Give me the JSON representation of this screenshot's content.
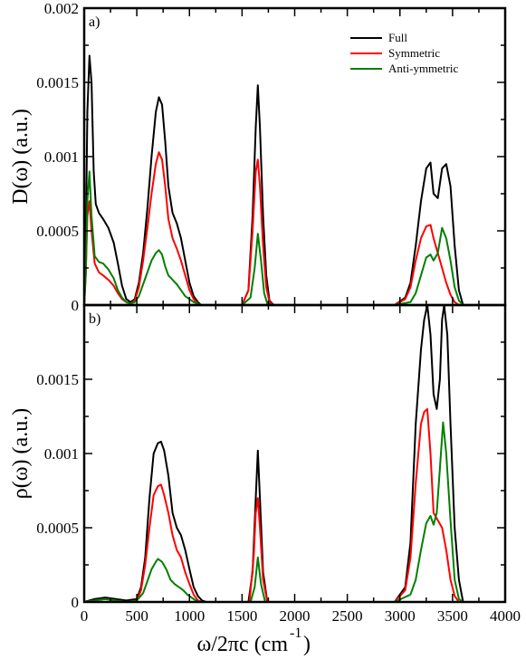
{
  "figure": {
    "xlabel_main": "ω/2πc (cm",
    "xlabel_sup": "-1",
    "xlabel_close": ")"
  },
  "colors": {
    "full": "#000000",
    "symmetric": "#ff0000",
    "antisymmetric": "#008000",
    "axes": "#000000"
  },
  "chart_data": [
    {
      "type": "line",
      "panel": "a)",
      "ylabel": "D(ω) (a.u.)",
      "xlim": [
        0,
        4000
      ],
      "ylim": [
        0,
        0.002
      ],
      "x_ticks": [
        "0",
        "500",
        "1000",
        "1500",
        "2000",
        "2500",
        "3000",
        "3500",
        "4000"
      ],
      "x_tick_values": [
        0,
        500,
        1000,
        1500,
        2000,
        2500,
        3000,
        3500,
        4000
      ],
      "y_ticks": [
        "0",
        "0.0005",
        "0.001",
        "0.0015",
        "0.002"
      ],
      "y_tick_values": [
        0,
        0.0005,
        0.001,
        0.0015,
        0.002
      ],
      "legend": {
        "placement": "top-right",
        "entries": [
          "Full",
          "Symmetric",
          "Anti-ymmetric"
        ]
      },
      "series": [
        {
          "name": "Full",
          "color": "#000000",
          "x": [
            0,
            15,
            30,
            50,
            70,
            90,
            110,
            140,
            180,
            230,
            280,
            320,
            360,
            400,
            440,
            480,
            520,
            560,
            600,
            640,
            680,
            710,
            740,
            770,
            800,
            840,
            880,
            920,
            960,
            1000,
            1040,
            1080,
            1110,
            1150,
            1200,
            1500,
            1560,
            1600,
            1630,
            1650,
            1670,
            1700,
            1730,
            1760,
            1800,
            2950,
            3050,
            3100,
            3150,
            3200,
            3250,
            3290,
            3320,
            3360,
            3400,
            3440,
            3480,
            3520,
            3560,
            3600,
            4000
          ],
          "y": [
            0,
            0.0004,
            0.0013,
            0.00168,
            0.0015,
            0.0009,
            0.00068,
            0.00062,
            0.00058,
            0.00052,
            0.00042,
            0.00028,
            0.00013,
            4e-05,
            2e-05,
            4e-05,
            0.00015,
            0.00035,
            0.00065,
            0.001,
            0.0013,
            0.0014,
            0.00135,
            0.0011,
            0.0008,
            0.00062,
            0.00055,
            0.00045,
            0.0003,
            0.00015,
            6e-05,
            2e-05,
            0,
            0,
            0,
            0,
            0.0001,
            0.0006,
            0.0012,
            0.00148,
            0.0012,
            0.0006,
            0.0002,
            3e-05,
            0,
            0,
            5e-05,
            0.00015,
            0.0004,
            0.0007,
            0.00092,
            0.00096,
            0.00075,
            0.00072,
            0.00092,
            0.00095,
            0.0008,
            0.0004,
            0.0001,
            0,
            0
          ]
        },
        {
          "name": "Symmetric",
          "color": "#ff0000",
          "x": [
            0,
            15,
            30,
            50,
            70,
            100,
            140,
            180,
            230,
            280,
            320,
            360,
            400,
            440,
            480,
            520,
            560,
            600,
            640,
            680,
            710,
            740,
            770,
            800,
            840,
            880,
            920,
            960,
            1000,
            1040,
            1080,
            1110,
            1150,
            1200,
            1500,
            1560,
            1600,
            1630,
            1650,
            1670,
            1700,
            1730,
            1760,
            1800,
            2950,
            3050,
            3100,
            3150,
            3200,
            3250,
            3290,
            3320,
            3360,
            3400,
            3440,
            3480,
            3520,
            3560,
            3600,
            4000
          ],
          "y": [
            0,
            0.0002,
            0.0006,
            0.0007,
            0.0005,
            0.00028,
            0.00022,
            0.0002,
            0.00017,
            0.00013,
            8e-05,
            4e-05,
            2e-05,
            1e-05,
            3e-05,
            0.00012,
            0.0003,
            0.00052,
            0.00075,
            0.00095,
            0.00103,
            0.00098,
            0.0008,
            0.00058,
            0.00045,
            0.00038,
            0.0003,
            0.0002,
            0.0001,
            4e-05,
            1e-05,
            0,
            0,
            0,
            0,
            0.0001,
            0.0005,
            0.0009,
            0.00098,
            0.0008,
            0.0004,
            0.00012,
            2e-05,
            0,
            0,
            4e-05,
            0.00012,
            0.0003,
            0.00045,
            0.00053,
            0.00054,
            0.00045,
            0.00035,
            0.00025,
            0.00015,
            7e-05,
            2e-05,
            0,
            0,
            0
          ]
        },
        {
          "name": "Anti-ymmetric",
          "color": "#008000",
          "x": [
            0,
            15,
            30,
            50,
            70,
            100,
            140,
            180,
            230,
            280,
            320,
            360,
            400,
            440,
            480,
            520,
            560,
            600,
            640,
            680,
            710,
            740,
            770,
            800,
            840,
            880,
            920,
            960,
            1000,
            1040,
            1080,
            1110,
            1150,
            1200,
            1500,
            1580,
            1620,
            1650,
            1680,
            1710,
            1740,
            1800,
            2950,
            3100,
            3150,
            3200,
            3250,
            3290,
            3320,
            3360,
            3400,
            3440,
            3480,
            3520,
            3560,
            3600,
            4000
          ],
          "y": [
            0,
            0.0002,
            0.0007,
            0.0009,
            0.0006,
            0.00033,
            0.00029,
            0.00028,
            0.00024,
            0.00018,
            0.0001,
            5e-05,
            2e-05,
            1e-05,
            2e-05,
            6e-05,
            0.00014,
            0.00022,
            0.0003,
            0.00035,
            0.00037,
            0.00034,
            0.00026,
            0.0002,
            0.00017,
            0.00014,
            0.0001,
            6e-05,
            4e-05,
            2e-05,
            1e-05,
            0,
            0,
            0,
            0,
            5e-05,
            0.00025,
            0.00048,
            0.0003,
            8e-05,
            1e-05,
            0,
            0,
            2e-05,
            8e-05,
            0.0002,
            0.00032,
            0.00034,
            0.0003,
            0.00035,
            0.00052,
            0.00045,
            0.0003,
            0.00012,
            3e-05,
            0,
            0
          ]
        }
      ]
    },
    {
      "type": "line",
      "panel": "b)",
      "ylabel": "ρ(ω) (a.u.)",
      "xlim": [
        0,
        4000
      ],
      "ylim": [
        0,
        0.002
      ],
      "x_ticks": [
        "0",
        "500",
        "1000",
        "1500",
        "2000",
        "2500",
        "3000",
        "3500",
        "4000"
      ],
      "x_tick_values": [
        0,
        500,
        1000,
        1500,
        2000,
        2500,
        3000,
        3500,
        4000
      ],
      "y_ticks": [
        "0",
        "0.0005",
        "0.001",
        "0.0015"
      ],
      "y_tick_values": [
        0,
        0.0005,
        0.001,
        0.0015
      ],
      "series": [
        {
          "name": "Full",
          "color": "#000000",
          "x": [
            0,
            100,
            200,
            300,
            400,
            500,
            540,
            580,
            620,
            660,
            700,
            730,
            760,
            800,
            840,
            880,
            920,
            960,
            1000,
            1040,
            1080,
            1120,
            1160,
            1200,
            1560,
            1600,
            1630,
            1650,
            1670,
            1700,
            1740,
            2950,
            3050,
            3100,
            3150,
            3200,
            3230,
            3260,
            3290,
            3320,
            3350,
            3380,
            3400,
            3420,
            3450,
            3480,
            3520,
            3560,
            3600,
            4000
          ],
          "y": [
            0,
            2e-05,
            3e-05,
            2e-05,
            1e-05,
            2e-05,
            0.0001,
            0.0003,
            0.0007,
            0.001,
            0.00107,
            0.00108,
            0.00102,
            0.00085,
            0.0006,
            0.0005,
            0.00045,
            0.00035,
            0.00022,
            0.0001,
            4e-05,
            1e-05,
            0,
            0,
            0,
            0.0002,
            0.0007,
            0.00102,
            0.0007,
            0.0002,
            0,
            0,
            0.0001,
            0.0004,
            0.0012,
            0.0017,
            0.0019,
            0.002,
            0.0018,
            0.0014,
            0.0013,
            0.0015,
            0.0019,
            0.002,
            0.0018,
            0.0012,
            0.0005,
            0.00015,
            0,
            0
          ]
        },
        {
          "name": "Symmetric",
          "color": "#ff0000",
          "x": [
            0,
            100,
            200,
            300,
            400,
            500,
            540,
            580,
            620,
            660,
            700,
            730,
            760,
            800,
            840,
            880,
            920,
            960,
            1000,
            1040,
            1080,
            1120,
            1160,
            1200,
            1570,
            1610,
            1630,
            1650,
            1670,
            1700,
            1740,
            2950,
            3050,
            3100,
            3150,
            3200,
            3230,
            3260,
            3290,
            3320,
            3360,
            3400,
            3440,
            3480,
            3520,
            3560,
            3600,
            4000
          ],
          "y": [
            0,
            1e-05,
            2e-05,
            1e-05,
            0,
            1e-05,
            8e-05,
            0.00025,
            0.0005,
            0.00072,
            0.00078,
            0.00079,
            0.00072,
            0.0006,
            0.00045,
            0.00035,
            0.0003,
            0.0002,
            0.00012,
            5e-05,
            1e-05,
            0,
            0,
            0,
            0,
            0.0003,
            0.0006,
            0.0007,
            0.0005,
            0.00015,
            0,
            0,
            8e-05,
            0.0003,
            0.0008,
            0.0012,
            0.00128,
            0.0013,
            0.001,
            0.0006,
            0.00055,
            0.0005,
            0.00035,
            0.00015,
            4e-05,
            0,
            0,
            0
          ]
        },
        {
          "name": "Anti-ymmetric",
          "color": "#008000",
          "x": [
            0,
            100,
            200,
            300,
            400,
            500,
            560,
            600,
            640,
            680,
            700,
            740,
            780,
            820,
            860,
            900,
            940,
            980,
            1020,
            1060,
            1100,
            1140,
            1200,
            1580,
            1620,
            1650,
            1680,
            1720,
            2950,
            3100,
            3150,
            3200,
            3250,
            3290,
            3320,
            3350,
            3380,
            3410,
            3440,
            3480,
            3520,
            3560,
            3600,
            4000
          ],
          "y": [
            0,
            1e-05,
            2e-05,
            1e-05,
            0,
            1e-05,
            6e-05,
            0.00014,
            0.00022,
            0.00027,
            0.00029,
            0.00027,
            0.00022,
            0.00015,
            0.00012,
            0.0001,
            8e-05,
            5e-05,
            3e-05,
            1e-05,
            0,
            0,
            0,
            0,
            0.0001,
            0.0003,
            0.00012,
            0,
            0,
            5e-05,
            0.00015,
            0.00035,
            0.00053,
            0.00058,
            0.00052,
            0.0006,
            0.0009,
            0.00121,
            0.001,
            0.00055,
            0.00015,
            2e-05,
            0,
            0
          ]
        }
      ]
    }
  ]
}
